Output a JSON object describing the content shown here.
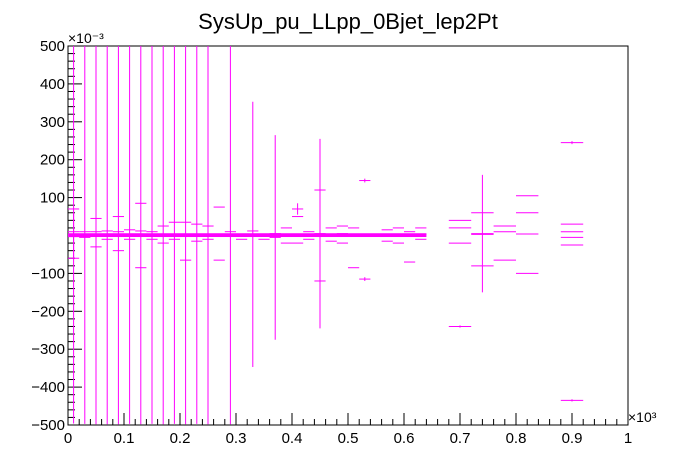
{
  "chart_data": {
    "type": "scatter",
    "title": "SysUp_pu_LLpp_0Bjet_lep2Pt",
    "xlabel": "",
    "ylabel": "",
    "xlim": [
      0,
      1000
    ],
    "ylim": [
      -0.5,
      0.5
    ],
    "x_exponent_label": "×10³",
    "y_exponent_label": "×10⁻³",
    "x_ticks": [
      0,
      100,
      200,
      300,
      400,
      500,
      600,
      700,
      800,
      900,
      1000
    ],
    "x_tick_labels": [
      "0",
      "0.1",
      "0.2",
      "0.3",
      "0.4",
      "0.5",
      "0.6",
      "0.7",
      "0.8",
      "0.9",
      "1"
    ],
    "y_ticks": [
      -0.5,
      -0.4,
      -0.3,
      -0.2,
      -0.1,
      0.1,
      0.2,
      0.3,
      0.4,
      0.5
    ],
    "y_tick_labels": [
      "−500",
      "−400",
      "−300",
      "−200",
      "−100",
      "100",
      "200",
      "300",
      "400",
      "500"
    ],
    "marker_color": "#ff00ff",
    "series": [
      {
        "x_min": 0,
        "x_max": 20,
        "points": [
          {
            "y": 0.004,
            "err": 0.5
          },
          {
            "y": -0.003,
            "err": 0.06
          },
          {
            "y": 0.07,
            "err": 0
          },
          {
            "y": -0.06,
            "err": 0
          },
          {
            "y": 0.01,
            "err": 0
          }
        ]
      },
      {
        "x_min": 20,
        "x_max": 40,
        "points": [
          {
            "y": 0.003,
            "err": 0.5
          },
          {
            "y": -0.005,
            "err": 0
          },
          {
            "y": 0.01,
            "err": 0
          }
        ]
      },
      {
        "x_min": 40,
        "x_max": 60,
        "points": [
          {
            "y": 0.002,
            "err": 0.5
          },
          {
            "y": 0.045,
            "err": 0
          },
          {
            "y": -0.03,
            "err": 0
          },
          {
            "y": 0.01,
            "err": 0
          }
        ]
      },
      {
        "x_min": 60,
        "x_max": 80,
        "points": [
          {
            "y": 0.002,
            "err": 0.5
          },
          {
            "y": -0.01,
            "err": 0
          },
          {
            "y": 0.012,
            "err": 0
          }
        ]
      },
      {
        "x_min": 80,
        "x_max": 100,
        "points": [
          {
            "y": 0.002,
            "err": 0.5
          },
          {
            "y": 0.05,
            "err": 0
          },
          {
            "y": -0.04,
            "err": 0
          },
          {
            "y": 0.01,
            "err": 0
          }
        ]
      },
      {
        "x_min": 100,
        "x_max": 120,
        "points": [
          {
            "y": 0.003,
            "err": 0.5
          },
          {
            "y": -0.01,
            "err": 0
          },
          {
            "y": 0.015,
            "err": 0
          }
        ]
      },
      {
        "x_min": 120,
        "x_max": 140,
        "points": [
          {
            "y": 0.002,
            "err": 0.5
          },
          {
            "y": 0.085,
            "err": 0
          },
          {
            "y": -0.085,
            "err": 0
          },
          {
            "y": 0.012,
            "err": 0
          }
        ]
      },
      {
        "x_min": 140,
        "x_max": 160,
        "points": [
          {
            "y": 0.003,
            "err": 0.5
          },
          {
            "y": -0.01,
            "err": 0
          },
          {
            "y": 0.01,
            "err": 0
          }
        ]
      },
      {
        "x_min": 160,
        "x_max": 180,
        "points": [
          {
            "y": 0.002,
            "err": 0.5
          },
          {
            "y": 0.025,
            "err": 0
          },
          {
            "y": -0.02,
            "err": 0
          }
        ]
      },
      {
        "x_min": 180,
        "x_max": 200,
        "points": [
          {
            "y": 0.003,
            "err": 0.5
          },
          {
            "y": 0.035,
            "err": 0
          },
          {
            "y": -0.01,
            "err": 0
          }
        ]
      },
      {
        "x_min": 200,
        "x_max": 220,
        "points": [
          {
            "y": 0.002,
            "err": 0.5
          },
          {
            "y": -0.065,
            "err": 0
          },
          {
            "y": 0.035,
            "err": 0
          }
        ]
      },
      {
        "x_min": 220,
        "x_max": 240,
        "points": [
          {
            "y": 0.003,
            "err": 0.5
          },
          {
            "y": 0.03,
            "err": 0
          },
          {
            "y": -0.015,
            "err": 0
          }
        ]
      },
      {
        "x_min": 240,
        "x_max": 260,
        "points": [
          {
            "y": 0.002,
            "err": 0.5
          },
          {
            "y": -0.01,
            "err": 0
          },
          {
            "y": 0.025,
            "err": 0
          }
        ]
      },
      {
        "x_min": 260,
        "x_max": 280,
        "points": [
          {
            "y": 0.004,
            "err": 0
          },
          {
            "y": 0.075,
            "err": 0
          },
          {
            "y": -0.065,
            "err": 0
          }
        ]
      },
      {
        "x_min": 280,
        "x_max": 300,
        "points": [
          {
            "y": 0.002,
            "err": 0.5
          },
          {
            "y": 0.01,
            "err": 0
          }
        ]
      },
      {
        "x_min": 300,
        "x_max": 320,
        "points": [
          {
            "y": 0.003,
            "err": 0
          },
          {
            "y": -0.01,
            "err": 0
          }
        ]
      },
      {
        "x_min": 320,
        "x_max": 340,
        "points": [
          {
            "y": 0.003,
            "err": 0.35
          },
          {
            "y": 0.012,
            "err": 0
          }
        ]
      },
      {
        "x_min": 340,
        "x_max": 360,
        "points": [
          {
            "y": 0.002,
            "err": 0
          },
          {
            "y": -0.01,
            "err": 0
          }
        ]
      },
      {
        "x_min": 360,
        "x_max": 380,
        "points": [
          {
            "y": -0.005,
            "err": 0.27
          },
          {
            "y": 0.005,
            "err": 0
          }
        ]
      },
      {
        "x_min": 380,
        "x_max": 400,
        "points": [
          {
            "y": 0.02,
            "err": 0
          },
          {
            "y": -0.02,
            "err": 0
          }
        ]
      },
      {
        "x_min": 400,
        "x_max": 420,
        "points": [
          {
            "y": 0.07,
            "err": 0.015
          },
          {
            "y": 0.05,
            "err": 0
          },
          {
            "y": -0.02,
            "err": 0
          }
        ]
      },
      {
        "x_min": 420,
        "x_max": 440,
        "points": [
          {
            "y": 0.01,
            "err": 0
          },
          {
            "y": -0.01,
            "err": 0
          }
        ]
      },
      {
        "x_min": 440,
        "x_max": 460,
        "points": [
          {
            "y": 0.005,
            "err": 0.25
          },
          {
            "y": 0.12,
            "err": 0
          },
          {
            "y": -0.12,
            "err": 0
          }
        ]
      },
      {
        "x_min": 460,
        "x_max": 480,
        "points": [
          {
            "y": 0.02,
            "err": 0
          },
          {
            "y": -0.015,
            "err": 0
          }
        ]
      },
      {
        "x_min": 480,
        "x_max": 500,
        "points": [
          {
            "y": 0.025,
            "err": 0
          },
          {
            "y": -0.02,
            "err": 0
          },
          {
            "y": 0.005,
            "err": 0
          }
        ]
      },
      {
        "x_min": 500,
        "x_max": 520,
        "points": [
          {
            "y": -0.085,
            "err": 0
          },
          {
            "y": 0.02,
            "err": 0
          }
        ]
      },
      {
        "x_min": 520,
        "x_max": 540,
        "points": [
          {
            "y": 0.145,
            "err": 0.005
          },
          {
            "y": -0.115,
            "err": 0.005
          },
          {
            "y": 0.002,
            "err": 0
          }
        ]
      },
      {
        "x_min": 540,
        "x_max": 560,
        "points": [
          {
            "y": 0.003,
            "err": 0
          }
        ]
      },
      {
        "x_min": 560,
        "x_max": 580,
        "points": [
          {
            "y": 0.015,
            "err": 0
          },
          {
            "y": -0.015,
            "err": 0
          }
        ]
      },
      {
        "x_min": 580,
        "x_max": 600,
        "points": [
          {
            "y": 0.02,
            "err": 0
          },
          {
            "y": -0.02,
            "err": 0
          },
          {
            "y": 0.004,
            "err": 0
          }
        ]
      },
      {
        "x_min": 600,
        "x_max": 620,
        "points": [
          {
            "y": -0.07,
            "err": 0
          },
          {
            "y": 0.01,
            "err": 0
          }
        ]
      },
      {
        "x_min": 620,
        "x_max": 640,
        "points": [
          {
            "y": 0.02,
            "err": 0
          },
          {
            "y": -0.01,
            "err": 0
          },
          {
            "y": 0.003,
            "err": 0
          }
        ]
      },
      {
        "x_min": 680,
        "x_max": 720,
        "points": [
          {
            "y": 0.04,
            "err": 0
          },
          {
            "y": -0.02,
            "err": 0
          },
          {
            "y": 0.02,
            "err": 0
          },
          {
            "y": -0.24,
            "err": 0.003
          }
        ]
      },
      {
        "x_min": 720,
        "x_max": 760,
        "points": [
          {
            "y": 0.005,
            "err": 0.155
          },
          {
            "y": 0.06,
            "err": 0
          },
          {
            "y": -0.08,
            "err": 0
          },
          {
            "y": 0.003,
            "err": 0
          }
        ]
      },
      {
        "x_min": 760,
        "x_max": 800,
        "points": [
          {
            "y": 0.025,
            "err": 0
          },
          {
            "y": -0.065,
            "err": 0
          },
          {
            "y": 0.01,
            "err": 0
          }
        ]
      },
      {
        "x_min": 800,
        "x_max": 840,
        "points": [
          {
            "y": 0.105,
            "err": 0
          },
          {
            "y": 0.06,
            "err": 0
          },
          {
            "y": -0.1,
            "err": 0
          },
          {
            "y": 0.004,
            "err": 0
          }
        ]
      },
      {
        "x_min": 880,
        "x_max": 920,
        "points": [
          {
            "y": 0.245,
            "err": 0.004
          },
          {
            "y": 0.03,
            "err": 0
          },
          {
            "y": -0.025,
            "err": 0
          },
          {
            "y": 0.01,
            "err": 0
          },
          {
            "y": -0.005,
            "err": 0
          },
          {
            "y": -0.435,
            "err": 0.003
          }
        ]
      }
    ]
  }
}
